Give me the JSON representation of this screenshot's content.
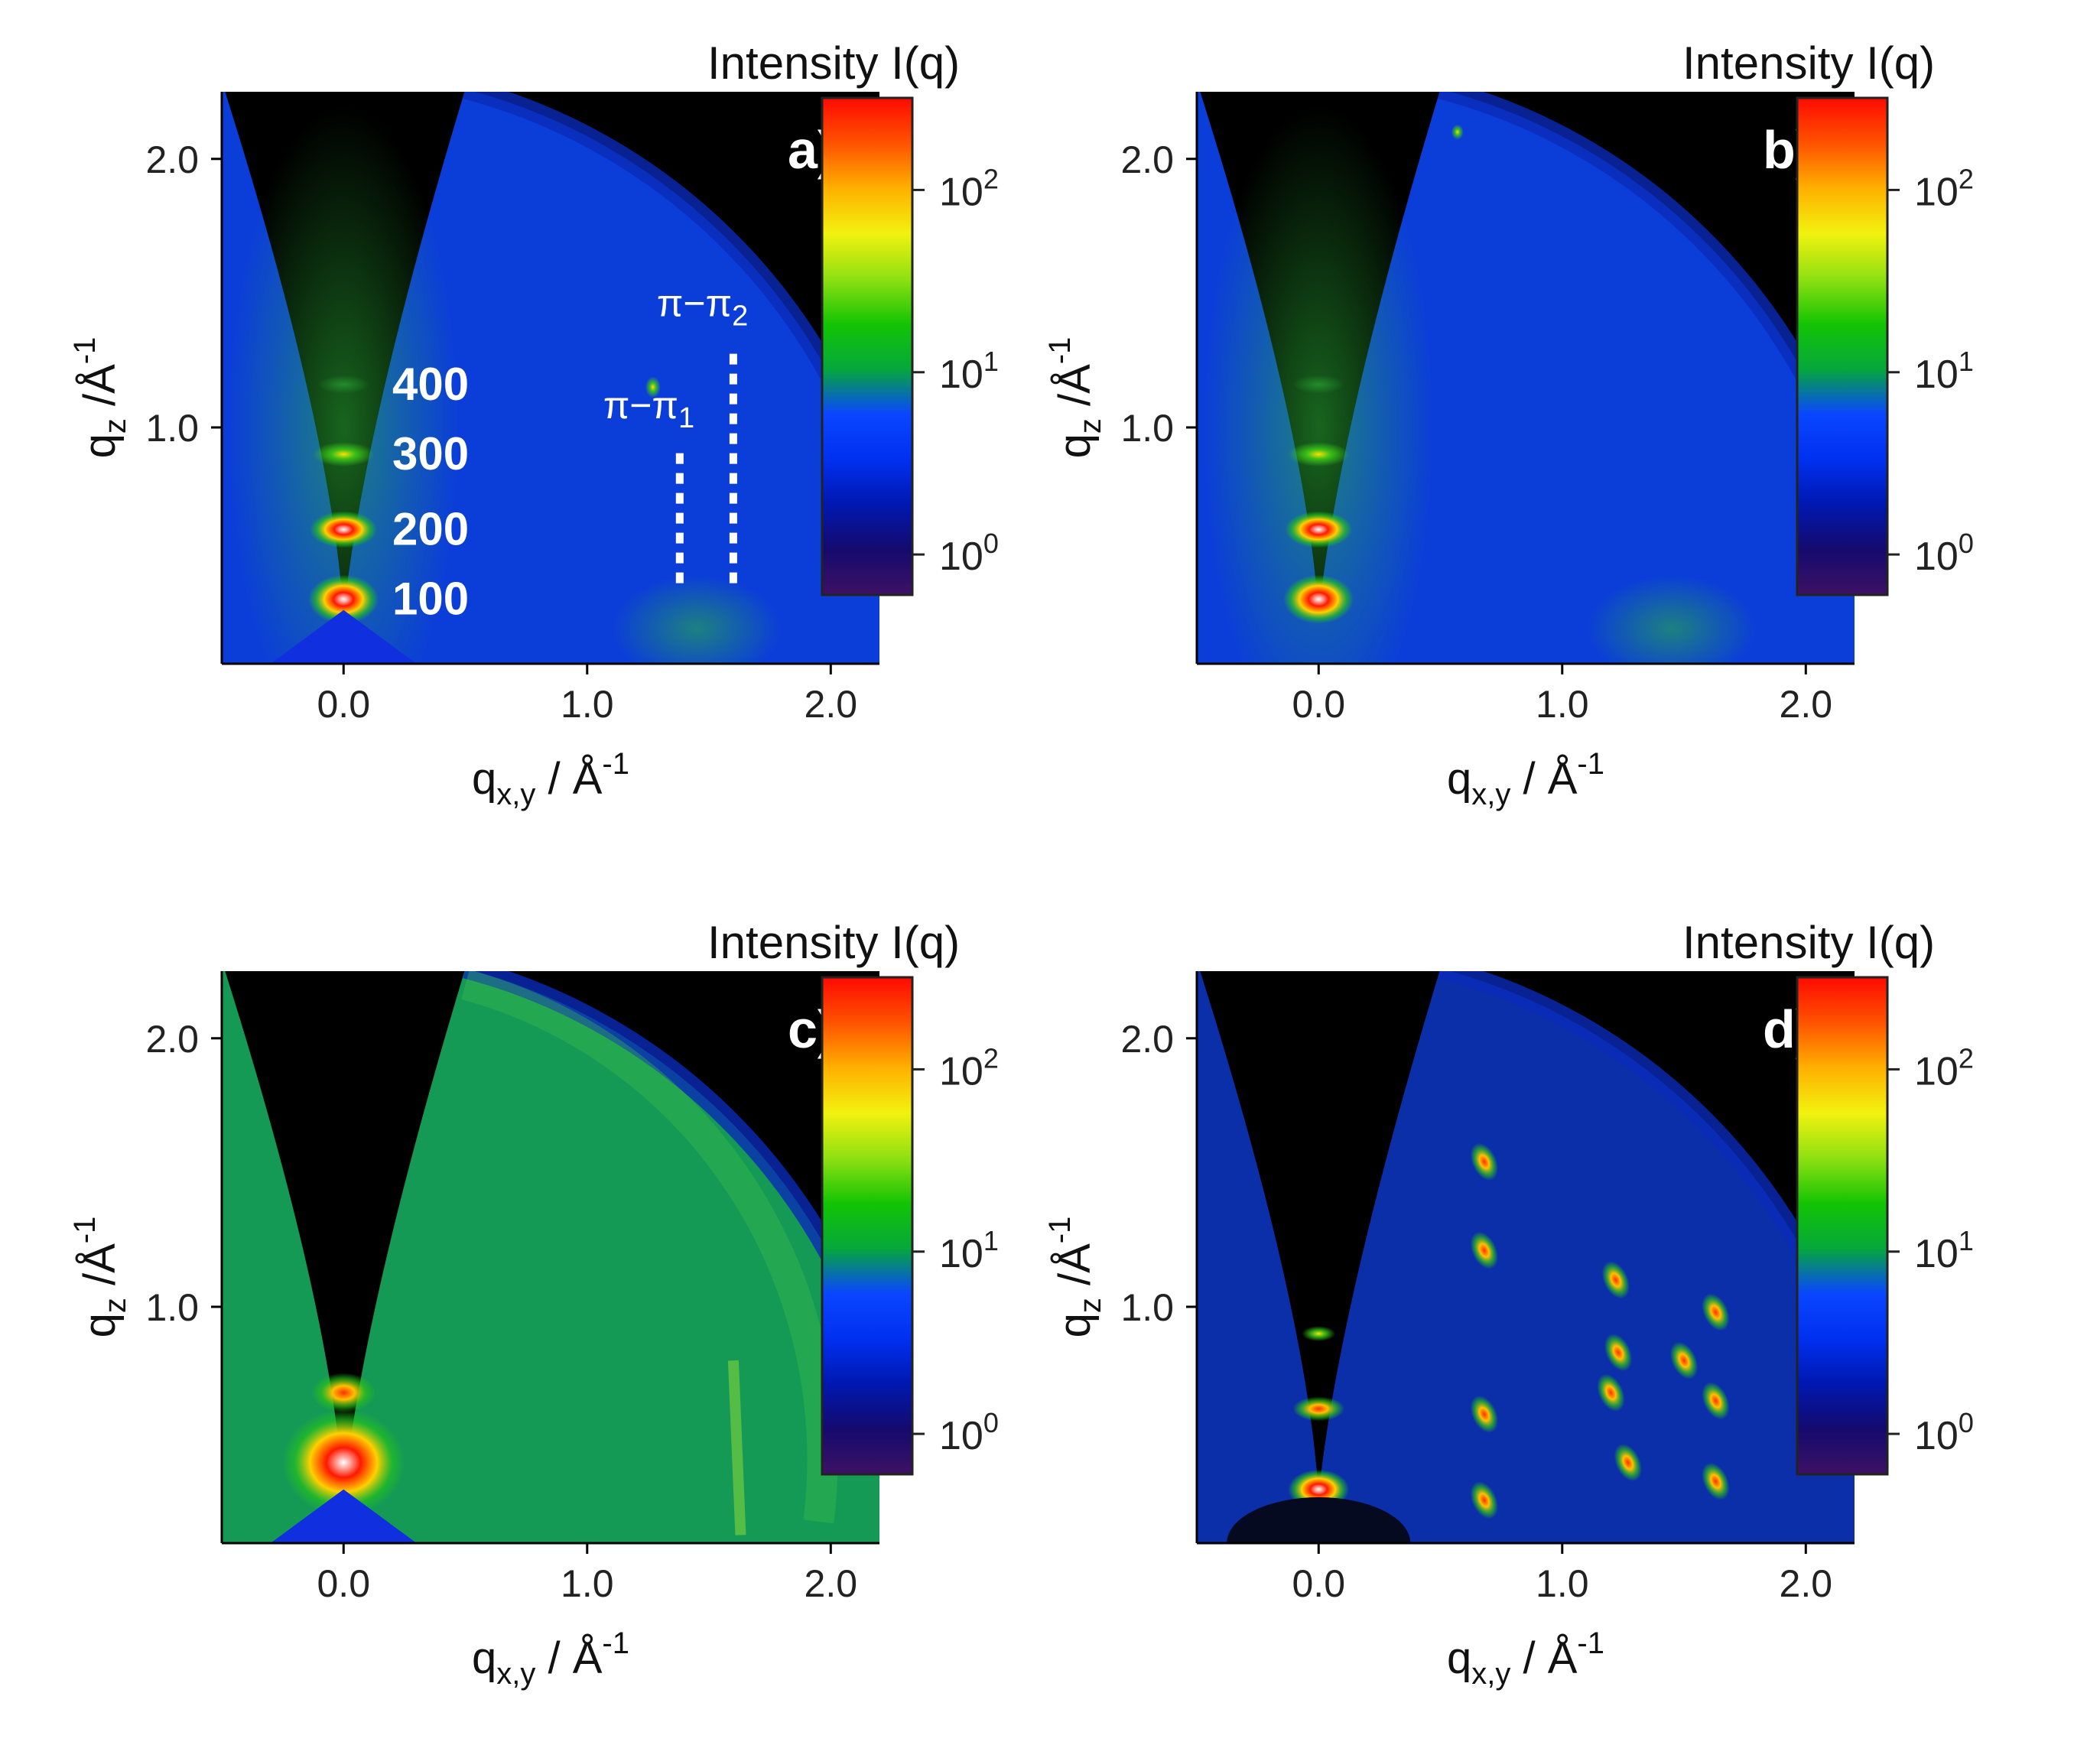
{
  "colorbar": {
    "title": "Intensity I(q)",
    "ticks": [
      {
        "base": "10",
        "exp": "0",
        "value": 1
      },
      {
        "base": "10",
        "exp": "1",
        "value": 10
      },
      {
        "base": "10",
        "exp": "2",
        "value": 100
      }
    ],
    "range": [
      0.6,
      320
    ],
    "colors": [
      "#3d1164",
      "#150a6e",
      "#0018b0",
      "#0030f0",
      "#0a46ff",
      "#05a83a",
      "#13c404",
      "#8fe012",
      "#f2f20f",
      "#ffb000",
      "#ff5200",
      "#ff0a00"
    ]
  },
  "chart_data": [
    {
      "type": "heatmap",
      "panel_label": "a)",
      "xlabel": {
        "main": "q",
        "sub": "x,y",
        "tail": " / Å",
        "sup": "-1"
      },
      "ylabel": {
        "main": "q",
        "sub": "z",
        "tail": " /Å",
        "sup": "-1"
      },
      "xlim": [
        -0.5,
        2.2
      ],
      "ylim": [
        0.12,
        2.25
      ],
      "xticks": [
        "0.0",
        "1.0",
        "2.0"
      ],
      "yticks": [
        "1.0",
        "2.0"
      ],
      "background": "#0b3ed8",
      "peaks": [
        {
          "label": "100",
          "qxy": 0.0,
          "qz": 0.36
        },
        {
          "label": "200",
          "qxy": 0.0,
          "qz": 0.62
        },
        {
          "label": "300",
          "qxy": 0.0,
          "qz": 0.9
        },
        {
          "label": "400",
          "qxy": 0.0,
          "qz": 1.16
        }
      ],
      "annotations": [
        {
          "text": "π−π",
          "sub": "1",
          "qxy": 1.38,
          "qz_range": [
            0.42,
            0.92
          ]
        },
        {
          "text": "π−π",
          "sub": "2",
          "qxy": 1.6,
          "qz_range": [
            0.42,
            1.3
          ]
        }
      ]
    },
    {
      "type": "heatmap",
      "panel_label": "b)",
      "xlabel": {
        "main": "q",
        "sub": "x,y",
        "tail": " / Å",
        "sup": "-1"
      },
      "ylabel": {
        "main": "q",
        "sub": "z",
        "tail": " /Å",
        "sup": "-1"
      },
      "xlim": [
        -0.5,
        2.2
      ],
      "ylim": [
        0.12,
        2.25
      ],
      "xticks": [
        "0.0",
        "1.0",
        "2.0"
      ],
      "yticks": [
        "1.0",
        "2.0"
      ],
      "background": "#0b3ed8"
    },
    {
      "type": "heatmap",
      "panel_label": "c)",
      "xlabel": {
        "main": "q",
        "sub": "x,y",
        "tail": " / Å",
        "sup": "-1"
      },
      "ylabel": {
        "main": "q",
        "sub": "z",
        "tail": " /Å",
        "sup": "-1"
      },
      "xlim": [
        -0.5,
        2.2
      ],
      "ylim": [
        0.12,
        2.25
      ],
      "xticks": [
        "0.0",
        "1.0",
        "2.0"
      ],
      "yticks": [
        "1.0",
        "2.0"
      ],
      "background": "#159a55"
    },
    {
      "type": "heatmap",
      "panel_label": "d)",
      "xlabel": {
        "main": "q",
        "sub": "x,y",
        "tail": " / Å",
        "sup": "-1"
      },
      "ylabel": {
        "main": "q",
        "sub": "z",
        "tail": " /Å",
        "sup": "-1"
      },
      "xlim": [
        -0.5,
        2.2
      ],
      "ylim": [
        0.12,
        2.25
      ],
      "xticks": [
        "0.0",
        "1.0",
        "2.0"
      ],
      "yticks": [
        "1.0",
        "2.0"
      ],
      "background": "#0a2fa8",
      "spots": [
        {
          "qxy": 0.68,
          "qz": 1.54
        },
        {
          "qxy": 0.68,
          "qz": 1.21
        },
        {
          "qxy": 0.68,
          "qz": 0.6
        },
        {
          "qxy": 0.68,
          "qz": 0.28
        },
        {
          "qxy": 1.2,
          "qz": 0.68
        },
        {
          "qxy": 1.23,
          "qz": 0.83
        },
        {
          "qxy": 1.5,
          "qz": 0.8
        },
        {
          "qxy": 1.63,
          "qz": 0.65
        },
        {
          "qxy": 1.63,
          "qz": 0.98
        },
        {
          "qxy": 1.22,
          "qz": 1.1
        },
        {
          "qxy": 1.27,
          "qz": 0.42
        },
        {
          "qxy": 1.63,
          "qz": 0.35
        }
      ]
    }
  ]
}
